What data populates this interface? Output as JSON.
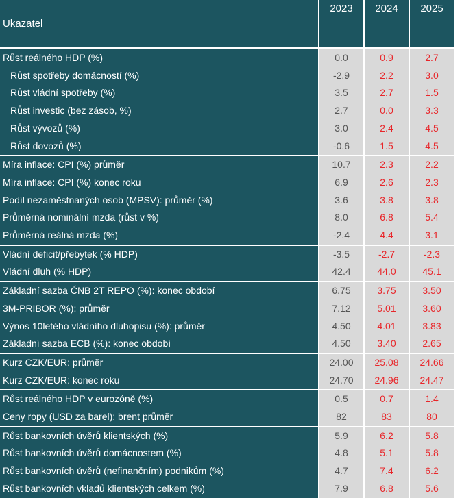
{
  "header": {
    "label": "Ukazatel",
    "years": [
      "2023",
      "2024",
      "2025"
    ]
  },
  "rows": [
    {
      "label": "Růst reálného HDP (%)",
      "v2023": "0.0",
      "v2024": "0.9",
      "v2025": "2.7"
    },
    {
      "label": "Růst spotřeby domácností (%)",
      "v2023": "-2.9",
      "v2024": "2.2",
      "v2025": "3.0"
    },
    {
      "label": "Růst vládní spotřeby (%)",
      "v2023": "3.5",
      "v2024": "2.7",
      "v2025": "1.5"
    },
    {
      "label": "Růst investic (bez zásob, %)",
      "v2023": "2.7",
      "v2024": "0.0",
      "v2025": "3.3"
    },
    {
      "label": "Růst vývozů (%)",
      "v2023": "3.0",
      "v2024": "2.4",
      "v2025": "4.5"
    },
    {
      "label": "Růst dovozů (%)",
      "v2023": "-0.6",
      "v2024": "1.5",
      "v2025": "4.5"
    },
    {
      "label": "Míra inflace: CPI (%) průměr",
      "v2023": "10.7",
      "v2024": "2.3",
      "v2025": "2.2"
    },
    {
      "label": "Míra inflace: CPI (%) konec roku",
      "v2023": "6.9",
      "v2024": "2.6",
      "v2025": "2.3"
    },
    {
      "label": "Podíl nezaměstnaných osob (MPSV): průměr (%)",
      "v2023": "3.6",
      "v2024": "3.8",
      "v2025": "3.8"
    },
    {
      "label": "Průměrná nominální mzda (růst v %)",
      "v2023": "8.0",
      "v2024": "6.8",
      "v2025": "5.4"
    },
    {
      "label": "Průměrná reálná mzda (%)",
      "v2023": "-2.4",
      "v2024": "4.4",
      "v2025": "3.1"
    },
    {
      "label": "Vládní deficit/přebytek (% HDP)",
      "v2023": "-3.5",
      "v2024": "-2.7",
      "v2025": "-2.3"
    },
    {
      "label": "Vládní dluh (% HDP)",
      "v2023": "42.4",
      "v2024": "44.0",
      "v2025": "45.1"
    },
    {
      "label": "Základní sazba ČNB 2T REPO (%): konec období",
      "v2023": "6.75",
      "v2024": "3.75",
      "v2025": "3.50"
    },
    {
      "label": "3M-PRIBOR (%): průměr",
      "v2023": "7.12",
      "v2024": "5.01",
      "v2025": "3.60"
    },
    {
      "label": "Výnos 10letého vládního dluhopisu (%): průměr",
      "v2023": "4.50",
      "v2024": "4.01",
      "v2025": "3.83"
    },
    {
      "label": "Základní sazba ECB (%): konec období",
      "v2023": "4.50",
      "v2024": "3.40",
      "v2025": "2.65"
    },
    {
      "label": "Kurz CZK/EUR: průměr",
      "v2023": "24.00",
      "v2024": "25.08",
      "v2025": "24.66"
    },
    {
      "label": "Kurz CZK/EUR: konec roku",
      "v2023": "24.70",
      "v2024": "24.96",
      "v2025": "24.47"
    },
    {
      "label": "Růst reálného HDP v eurozóně (%)",
      "v2023": "0.5",
      "v2024": "0.7",
      "v2025": "1.4"
    },
    {
      "label": "Ceny ropy (USD za barel): brent průměr",
      "v2023": "82",
      "v2024": "83",
      "v2025": "80"
    },
    {
      "label": "Růst bankovních úvěrů klientských (%)",
      "v2023": "5.9",
      "v2024": "6.2",
      "v2025": "5.8"
    },
    {
      "label": "Růst bankovních úvěrů domácnostem (%)",
      "v2023": "4.8",
      "v2024": "5.1",
      "v2025": "5.8"
    },
    {
      "label": "Růst bankovních úvěrů (nefinančním) podnikům (%)",
      "v2023": "4.7",
      "v2024": "7.4",
      "v2025": "6.2"
    },
    {
      "label": "Růst bankovních vkladů klientských celkem (%)",
      "v2023": "7.9",
      "v2024": "6.8",
      "v2025": "5.6"
    }
  ],
  "colors": {
    "header_bg": "#1c5560",
    "value_bg": "#d9d9d9",
    "value_2023": "#555555",
    "value_forecast": "#e8262a"
  }
}
